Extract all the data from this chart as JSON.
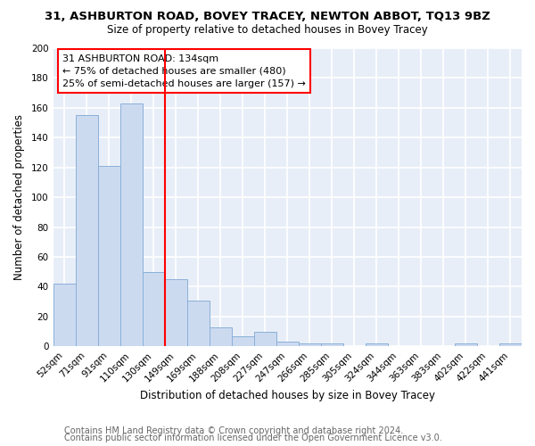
{
  "title": "31, ASHBURTON ROAD, BOVEY TRACEY, NEWTON ABBOT, TQ13 9BZ",
  "subtitle": "Size of property relative to detached houses in Bovey Tracey",
  "xlabel": "Distribution of detached houses by size in Bovey Tracey",
  "ylabel": "Number of detached properties",
  "bar_labels": [
    "52sqm",
    "71sqm",
    "91sqm",
    "110sqm",
    "130sqm",
    "149sqm",
    "169sqm",
    "188sqm",
    "208sqm",
    "227sqm",
    "247sqm",
    "266sqm",
    "285sqm",
    "305sqm",
    "324sqm",
    "344sqm",
    "363sqm",
    "383sqm",
    "402sqm",
    "422sqm",
    "441sqm"
  ],
  "bar_values": [
    42,
    155,
    121,
    163,
    50,
    45,
    31,
    13,
    7,
    10,
    3,
    2,
    2,
    0,
    2,
    0,
    0,
    0,
    2,
    0,
    2
  ],
  "bar_color": "#ccdaf0",
  "bar_edge_color": "#8ab0d8",
  "ylim": [
    0,
    200
  ],
  "yticks": [
    0,
    20,
    40,
    60,
    80,
    100,
    120,
    140,
    160,
    180,
    200
  ],
  "property_line_x": 4.5,
  "annotation_title": "31 ASHBURTON ROAD: 134sqm",
  "annotation_line1": "← 75% of detached houses are smaller (480)",
  "annotation_line2": "25% of semi-detached houses are larger (157) →",
  "annotation_box_color": "white",
  "annotation_box_edge_color": "red",
  "red_line_color": "red",
  "footer_line1": "Contains HM Land Registry data © Crown copyright and database right 2024.",
  "footer_line2": "Contains public sector information licensed under the Open Government Licence v3.0.",
  "fig_background_color": "white",
  "plot_background_color": "#e8eef8",
  "grid_color": "white",
  "title_fontsize": 9.5,
  "subtitle_fontsize": 8.5,
  "xlabel_fontsize": 8.5,
  "ylabel_fontsize": 8.5,
  "tick_fontsize": 7.5,
  "footer_fontsize": 7.0,
  "footer_color": "#666666"
}
